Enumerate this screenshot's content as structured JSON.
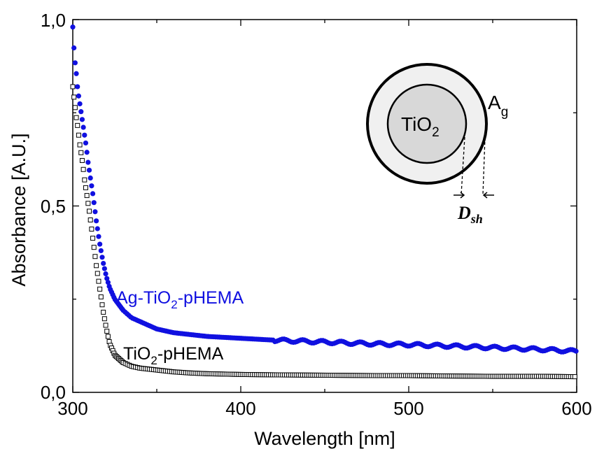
{
  "chart_data": {
    "type": "scatter",
    "xlabel": "Wavelength [nm]",
    "ylabel": "Absorbance [A.U.]",
    "xlim": [
      300,
      600
    ],
    "ylim": [
      0.0,
      1.0
    ],
    "x_ticks": [
      300,
      400,
      500,
      600
    ],
    "x_tick_labels": [
      "300",
      "400",
      "500",
      "600"
    ],
    "y_ticks": [
      0.0,
      0.5,
      1.0
    ],
    "y_tick_labels": [
      "0,0",
      "0,5",
      "1,0"
    ],
    "grid": false,
    "series": [
      {
        "name": "Ag-TiO2-pHEMA",
        "marker": "filled-circle",
        "color": "#1010e0",
        "x": [
          300,
          301,
          302,
          303,
          304,
          305,
          306,
          307,
          308,
          309,
          310,
          312,
          314,
          316,
          318,
          320,
          322,
          325,
          330,
          335,
          340,
          350,
          360,
          370,
          380,
          400,
          420,
          450,
          480,
          500,
          520,
          550,
          580,
          600
        ],
        "y": [
          0.98,
          0.9,
          0.86,
          0.81,
          0.78,
          0.75,
          0.72,
          0.69,
          0.66,
          0.62,
          0.59,
          0.53,
          0.46,
          0.4,
          0.35,
          0.31,
          0.28,
          0.25,
          0.22,
          0.2,
          0.19,
          0.17,
          0.16,
          0.155,
          0.15,
          0.145,
          0.14,
          0.135,
          0.13,
          0.128,
          0.125,
          0.12,
          0.115,
          0.11
        ]
      },
      {
        "name": "TiO2-pHEMA",
        "marker": "open-square",
        "color": "#000000",
        "x": [
          300,
          301,
          302,
          303,
          304,
          305,
          306,
          307,
          308,
          309,
          310,
          312,
          314,
          316,
          318,
          320,
          322,
          325,
          330,
          335,
          340,
          350,
          360,
          370,
          380,
          400,
          420,
          450,
          480,
          500,
          520,
          550,
          580,
          600
        ],
        "y": [
          0.82,
          0.78,
          0.74,
          0.71,
          0.67,
          0.64,
          0.61,
          0.57,
          0.54,
          0.51,
          0.48,
          0.41,
          0.34,
          0.28,
          0.22,
          0.17,
          0.13,
          0.1,
          0.08,
          0.07,
          0.065,
          0.06,
          0.055,
          0.052,
          0.05,
          0.048,
          0.047,
          0.046,
          0.045,
          0.045,
          0.044,
          0.043,
          0.043,
          0.042
        ]
      }
    ],
    "annotations": {
      "series_label_1": {
        "prefix": "Ag-TiO",
        "sub": "2",
        "suffix": "-pHEMA"
      },
      "series_label_2": {
        "prefix": "TiO",
        "sub": "2",
        "suffix": "-pHEMA"
      },
      "inset_core": {
        "main": "TiO",
        "sub": "2"
      },
      "inset_shell": {
        "main": "A",
        "sub": "g"
      },
      "inset_dimension": {
        "main": "D",
        "sub": "sh"
      }
    }
  },
  "colors": {
    "blue": "#1010e0",
    "black": "#000000",
    "core_fill": "#d8d8d8",
    "shell_fill": "#f0f0f0"
  }
}
